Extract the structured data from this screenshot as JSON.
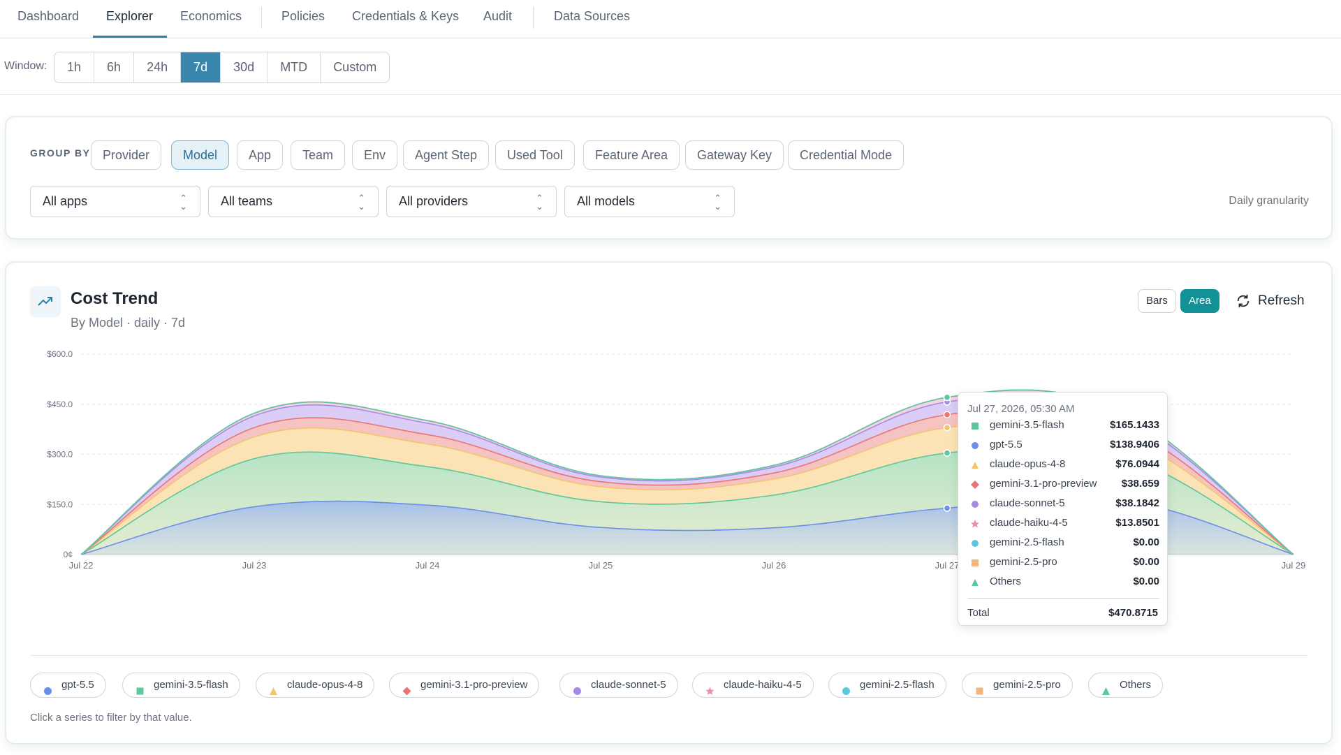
{
  "nav": {
    "tabs": [
      "Dashboard",
      "Explorer",
      "Economics",
      "Policies",
      "Credentials & Keys",
      "Audit",
      "Data Sources"
    ],
    "active": "Explorer"
  },
  "window": {
    "label": "Window:",
    "options": [
      "1h",
      "6h",
      "24h",
      "7d",
      "30d",
      "MTD",
      "Custom"
    ],
    "selected": "7d"
  },
  "filters": {
    "group_by_label": "GROUP BY",
    "group_by": [
      "Provider",
      "Model",
      "App",
      "Team",
      "Env",
      "Agent Step",
      "Used Tool",
      "Feature Area",
      "Gateway Key",
      "Credential Mode"
    ],
    "group_by_selected": "Model",
    "selects": [
      "All apps",
      "All teams",
      "All providers",
      "All models"
    ],
    "granularity": "Daily granularity"
  },
  "cost_trend": {
    "title": "Cost Trend",
    "subtitle": "By Model · daily · 7d",
    "bars_label": "Bars",
    "area_label": "Area",
    "refresh_label": "Refresh",
    "hint": "Click a series to filter by that value."
  },
  "tooltip": {
    "date": "Jul 27, 2026, 05:30 AM",
    "rows": [
      {
        "name": "gemini-3.5-flash",
        "value": "$165.1433"
      },
      {
        "name": "gpt-5.5",
        "value": "$138.9406"
      },
      {
        "name": "claude-opus-4-8",
        "value": "$76.0944"
      },
      {
        "name": "gemini-3.1-pro-preview",
        "value": "$38.659"
      },
      {
        "name": "claude-sonnet-5",
        "value": "$38.1842"
      },
      {
        "name": "claude-haiku-4-5",
        "value": "$13.8501"
      },
      {
        "name": "gemini-2.5-flash",
        "value": "$0.00"
      },
      {
        "name": "gemini-2.5-pro",
        "value": "$0.00"
      },
      {
        "name": "Others",
        "value": "$0.00"
      }
    ],
    "total_label": "Total",
    "total_value": "$470.8715"
  },
  "legend": [
    {
      "name": "gpt-5.5",
      "color": "#6c8ee8",
      "icon": "circle-icon"
    },
    {
      "name": "gemini-3.5-flash",
      "color": "#5cc79a",
      "icon": "square-icon"
    },
    {
      "name": "claude-opus-4-8",
      "color": "#f2c46d",
      "icon": "triangle-icon"
    },
    {
      "name": "gemini-3.1-pro-preview",
      "color": "#ea7474",
      "icon": "diamond-icon"
    },
    {
      "name": "claude-sonnet-5",
      "color": "#a58be6",
      "icon": "circle-icon"
    },
    {
      "name": "claude-haiku-4-5",
      "color": "#f08cb4",
      "icon": "star-icon"
    },
    {
      "name": "gemini-2.5-flash",
      "color": "#5cc8e0",
      "icon": "circle-icon"
    },
    {
      "name": "gemini-2.5-pro",
      "color": "#f2b47a",
      "icon": "square-icon"
    },
    {
      "name": "Others",
      "color": "#5cc6a8",
      "icon": "triangle-icon"
    }
  ],
  "chart_data": {
    "type": "area",
    "stacked": true,
    "x": [
      "Jul 22",
      "Jul 23",
      "Jul 24",
      "Jul 25",
      "Jul 26",
      "Jul 27",
      "Jul 28",
      "Jul 29"
    ],
    "ylim": [
      0,
      600
    ],
    "yticks": [
      "0¢",
      "$150.0",
      "$300.0",
      "$450.0",
      "$600.0"
    ],
    "grid": true,
    "series": [
      {
        "name": "gpt-5.5",
        "values": [
          0,
          143,
          148,
          81,
          80,
          139,
          165,
          0
        ]
      },
      {
        "name": "gemini-3.5-flash",
        "values": [
          0,
          144,
          115,
          77,
          98,
          165,
          133,
          0
        ]
      },
      {
        "name": "claude-opus-4-8",
        "values": [
          0,
          65,
          68,
          45,
          48,
          76,
          60,
          0
        ]
      },
      {
        "name": "gemini-3.1-pro-preview",
        "values": [
          0,
          28,
          28,
          15,
          18,
          38.66,
          30,
          0
        ]
      },
      {
        "name": "claude-sonnet-5",
        "values": [
          0,
          35,
          34,
          14,
          18,
          38.18,
          30,
          0
        ]
      },
      {
        "name": "claude-haiku-4-5",
        "values": [
          0,
          8,
          8,
          4,
          5,
          13.85,
          10,
          0
        ]
      },
      {
        "name": "gemini-2.5-flash",
        "values": [
          0,
          0,
          0,
          0,
          0,
          0,
          0,
          0
        ]
      },
      {
        "name": "gemini-2.5-pro",
        "values": [
          0,
          0,
          0,
          0,
          0,
          0,
          0,
          0
        ]
      },
      {
        "name": "Others",
        "values": [
          0,
          0,
          0,
          0,
          0,
          0,
          0,
          0
        ]
      }
    ]
  }
}
